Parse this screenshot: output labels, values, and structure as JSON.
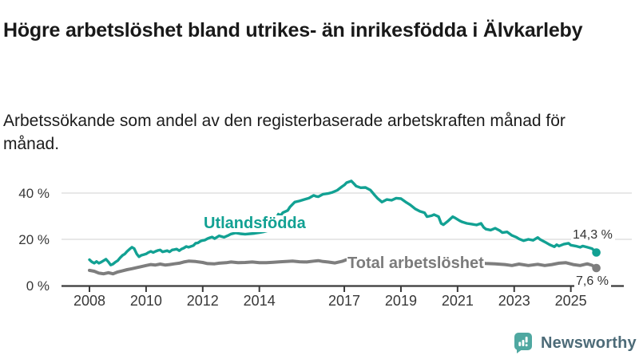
{
  "header": {
    "title": "Högre arbetslöshet bland utrikes- än inrikesfödda i Älvkarleby",
    "subtitle": "Arbetssökande som andel av den registerbaserade arbetskraften månad för månad."
  },
  "chart_data": {
    "type": "line",
    "title": "Högre arbetslöshet bland utrikes- än inrikesfödda i Älvkarleby",
    "subtitle": "Arbetssökande som andel av den registerbaserade arbetskraften månad för månad.",
    "xlabel": "",
    "ylabel": "",
    "xlim": [
      2008,
      2025.9
    ],
    "ylim": [
      0,
      48
    ],
    "grid": "horizontal-only",
    "legend_position": "inline-labels-on-lines",
    "axis_color": "#3a3a3a",
    "grid_color": "#d9d9d9",
    "x_ticks": [
      {
        "v": 2008,
        "label": "2008"
      },
      {
        "v": 2010,
        "label": "2010"
      },
      {
        "v": 2012,
        "label": "2012"
      },
      {
        "v": 2014,
        "label": "2014"
      },
      {
        "v": 2017,
        "label": "2017"
      },
      {
        "v": 2019,
        "label": "2019"
      },
      {
        "v": 2021,
        "label": "2021"
      },
      {
        "v": 2023,
        "label": "2023"
      },
      {
        "v": 2025,
        "label": "2025"
      }
    ],
    "y_ticks": [
      {
        "v": 0,
        "label": "0 %"
      },
      {
        "v": 20,
        "label": "20 %"
      },
      {
        "v": 40,
        "label": "40 %"
      }
    ],
    "series": [
      {
        "name": "Utlandsfödda",
        "color": "#12a193",
        "end_label": "14,3 %",
        "end_value": 14.3,
        "points": [
          [
            2008.0,
            11.2
          ],
          [
            2008.08,
            10.3
          ],
          [
            2008.17,
            9.7
          ],
          [
            2008.25,
            10.4
          ],
          [
            2008.33,
            9.7
          ],
          [
            2008.42,
            10.2
          ],
          [
            2008.5,
            10.8
          ],
          [
            2008.58,
            11.4
          ],
          [
            2008.67,
            10.2
          ],
          [
            2008.75,
            8.9
          ],
          [
            2008.83,
            9.3
          ],
          [
            2008.92,
            10.2
          ],
          [
            2009.0,
            10.8
          ],
          [
            2009.08,
            12.0
          ],
          [
            2009.17,
            13.1
          ],
          [
            2009.25,
            13.7
          ],
          [
            2009.33,
            14.8
          ],
          [
            2009.42,
            15.8
          ],
          [
            2009.5,
            16.6
          ],
          [
            2009.58,
            16.0
          ],
          [
            2009.67,
            13.7
          ],
          [
            2009.75,
            12.5
          ],
          [
            2009.83,
            13.1
          ],
          [
            2009.92,
            13.4
          ],
          [
            2010.0,
            13.7
          ],
          [
            2010.08,
            14.3
          ],
          [
            2010.17,
            14.8
          ],
          [
            2010.25,
            14.3
          ],
          [
            2010.33,
            14.8
          ],
          [
            2010.42,
            15.2
          ],
          [
            2010.5,
            15.4
          ],
          [
            2010.58,
            14.6
          ],
          [
            2010.75,
            15.1
          ],
          [
            2010.83,
            14.6
          ],
          [
            2010.92,
            15.4
          ],
          [
            2011.0,
            15.6
          ],
          [
            2011.08,
            15.8
          ],
          [
            2011.17,
            15.1
          ],
          [
            2011.25,
            15.8
          ],
          [
            2011.33,
            16.2
          ],
          [
            2011.42,
            16.9
          ],
          [
            2011.5,
            16.6
          ],
          [
            2011.67,
            17.3
          ],
          [
            2011.75,
            18.3
          ],
          [
            2011.83,
            18.5
          ],
          [
            2011.92,
            19.2
          ],
          [
            2012.0,
            19.5
          ],
          [
            2012.08,
            19.7
          ],
          [
            2012.17,
            20.3
          ],
          [
            2012.25,
            20.7
          ],
          [
            2012.33,
            21.0
          ],
          [
            2012.42,
            20.3
          ],
          [
            2012.58,
            21.5
          ],
          [
            2012.75,
            20.9
          ],
          [
            2012.92,
            21.8
          ],
          [
            2013.0,
            22.3
          ],
          [
            2013.17,
            22.8
          ],
          [
            2013.33,
            22.4
          ],
          [
            2013.5,
            22.2
          ],
          [
            2013.67,
            22.4
          ],
          [
            2013.83,
            22.6
          ],
          [
            2014.0,
            22.9
          ],
          [
            2014.17,
            23.3
          ],
          [
            2014.33,
            23.8
          ],
          [
            2014.5,
            26.0
          ],
          [
            2014.58,
            28.5
          ],
          [
            2014.67,
            30.9
          ],
          [
            2014.75,
            30.3
          ],
          [
            2014.83,
            31.5
          ],
          [
            2015.0,
            32.5
          ],
          [
            2015.08,
            34.0
          ],
          [
            2015.25,
            36.1
          ],
          [
            2015.42,
            36.6
          ],
          [
            2015.58,
            37.2
          ],
          [
            2015.75,
            37.8
          ],
          [
            2015.92,
            39.0
          ],
          [
            2016.0,
            38.6
          ],
          [
            2016.08,
            38.4
          ],
          [
            2016.25,
            39.5
          ],
          [
            2016.42,
            39.8
          ],
          [
            2016.58,
            40.3
          ],
          [
            2016.75,
            41.2
          ],
          [
            2016.92,
            42.8
          ],
          [
            2017.0,
            43.5
          ],
          [
            2017.08,
            44.5
          ],
          [
            2017.25,
            45.2
          ],
          [
            2017.33,
            44.2
          ],
          [
            2017.42,
            43.0
          ],
          [
            2017.58,
            42.3
          ],
          [
            2017.75,
            42.4
          ],
          [
            2017.92,
            41.3
          ],
          [
            2018.08,
            39.0
          ],
          [
            2018.17,
            37.8
          ],
          [
            2018.33,
            36.1
          ],
          [
            2018.5,
            37.2
          ],
          [
            2018.67,
            36.9
          ],
          [
            2018.83,
            37.8
          ],
          [
            2019.0,
            37.6
          ],
          [
            2019.17,
            36.1
          ],
          [
            2019.33,
            34.9
          ],
          [
            2019.5,
            33.2
          ],
          [
            2019.67,
            32.1
          ],
          [
            2019.83,
            31.5
          ],
          [
            2019.92,
            29.8
          ],
          [
            2020.08,
            30.2
          ],
          [
            2020.17,
            30.7
          ],
          [
            2020.33,
            29.8
          ],
          [
            2020.42,
            26.9
          ],
          [
            2020.5,
            26.3
          ],
          [
            2020.67,
            28.0
          ],
          [
            2020.83,
            29.8
          ],
          [
            2020.92,
            29.2
          ],
          [
            2021.08,
            28.0
          ],
          [
            2021.17,
            27.5
          ],
          [
            2021.33,
            26.9
          ],
          [
            2021.5,
            26.6
          ],
          [
            2021.67,
            26.2
          ],
          [
            2021.83,
            26.9
          ],
          [
            2021.92,
            25.2
          ],
          [
            2022.0,
            24.4
          ],
          [
            2022.17,
            24.0
          ],
          [
            2022.33,
            24.8
          ],
          [
            2022.5,
            23.7
          ],
          [
            2022.58,
            22.9
          ],
          [
            2022.75,
            23.2
          ],
          [
            2022.92,
            21.7
          ],
          [
            2023.08,
            20.9
          ],
          [
            2023.17,
            20.2
          ],
          [
            2023.33,
            19.4
          ],
          [
            2023.5,
            20.0
          ],
          [
            2023.67,
            19.6
          ],
          [
            2023.83,
            20.8
          ],
          [
            2023.92,
            19.9
          ],
          [
            2024.08,
            18.9
          ],
          [
            2024.25,
            17.7
          ],
          [
            2024.42,
            16.8
          ],
          [
            2024.5,
            17.7
          ],
          [
            2024.58,
            17.1
          ],
          [
            2024.75,
            17.9
          ],
          [
            2024.92,
            18.3
          ],
          [
            2025.0,
            17.5
          ],
          [
            2025.17,
            17.1
          ],
          [
            2025.33,
            16.6
          ],
          [
            2025.42,
            17.1
          ],
          [
            2025.58,
            16.6
          ],
          [
            2025.75,
            16.0
          ],
          [
            2025.9,
            14.3
          ]
        ]
      },
      {
        "name": "Total arbetslöshet",
        "color": "#7e7e7e",
        "end_label": "7,6 %",
        "end_value": 7.6,
        "points": [
          [
            2008.0,
            6.6
          ],
          [
            2008.17,
            6.2
          ],
          [
            2008.33,
            5.4
          ],
          [
            2008.5,
            5.1
          ],
          [
            2008.67,
            5.6
          ],
          [
            2008.83,
            5.1
          ],
          [
            2009.0,
            5.9
          ],
          [
            2009.17,
            6.4
          ],
          [
            2009.33,
            6.9
          ],
          [
            2009.5,
            7.3
          ],
          [
            2009.67,
            7.8
          ],
          [
            2009.83,
            8.2
          ],
          [
            2010.0,
            8.7
          ],
          [
            2010.17,
            9.1
          ],
          [
            2010.33,
            8.9
          ],
          [
            2010.5,
            9.3
          ],
          [
            2010.67,
            8.9
          ],
          [
            2010.83,
            9.1
          ],
          [
            2011.0,
            9.4
          ],
          [
            2011.17,
            9.7
          ],
          [
            2011.33,
            10.2
          ],
          [
            2011.5,
            10.6
          ],
          [
            2011.75,
            10.4
          ],
          [
            2012.0,
            10.0
          ],
          [
            2012.17,
            9.5
          ],
          [
            2012.42,
            9.4
          ],
          [
            2012.58,
            9.7
          ],
          [
            2012.83,
            9.9
          ],
          [
            2013.0,
            10.2
          ],
          [
            2013.25,
            9.9
          ],
          [
            2013.5,
            10.0
          ],
          [
            2013.75,
            10.2
          ],
          [
            2014.0,
            9.9
          ],
          [
            2014.25,
            9.9
          ],
          [
            2014.5,
            10.1
          ],
          [
            2014.75,
            10.3
          ],
          [
            2015.0,
            10.5
          ],
          [
            2015.17,
            10.6
          ],
          [
            2015.42,
            10.3
          ],
          [
            2015.67,
            10.2
          ],
          [
            2015.92,
            10.6
          ],
          [
            2016.08,
            10.8
          ],
          [
            2016.25,
            10.4
          ],
          [
            2016.42,
            10.2
          ],
          [
            2016.67,
            9.8
          ],
          [
            2016.92,
            10.5
          ],
          [
            2017.08,
            11.2
          ],
          [
            2017.5,
            11.0
          ],
          [
            2018.0,
            10.4
          ],
          [
            2018.5,
            10.1
          ],
          [
            2019.0,
            9.8
          ],
          [
            2019.5,
            9.7
          ],
          [
            2020.0,
            10.2
          ],
          [
            2020.33,
            11.2
          ],
          [
            2020.67,
            11.0
          ],
          [
            2021.0,
            10.6
          ],
          [
            2021.5,
            10.1
          ],
          [
            2022.0,
            9.6
          ],
          [
            2022.33,
            9.4
          ],
          [
            2022.67,
            9.1
          ],
          [
            2022.92,
            8.7
          ],
          [
            2023.17,
            9.3
          ],
          [
            2023.5,
            8.7
          ],
          [
            2023.83,
            9.2
          ],
          [
            2024.08,
            8.7
          ],
          [
            2024.33,
            9.1
          ],
          [
            2024.58,
            9.7
          ],
          [
            2024.83,
            9.9
          ],
          [
            2025.08,
            9.1
          ],
          [
            2025.33,
            8.7
          ],
          [
            2025.58,
            9.4
          ],
          [
            2025.75,
            8.8
          ],
          [
            2025.9,
            7.6
          ]
        ]
      }
    ]
  },
  "footer": {
    "brand": "Newsworthy"
  }
}
